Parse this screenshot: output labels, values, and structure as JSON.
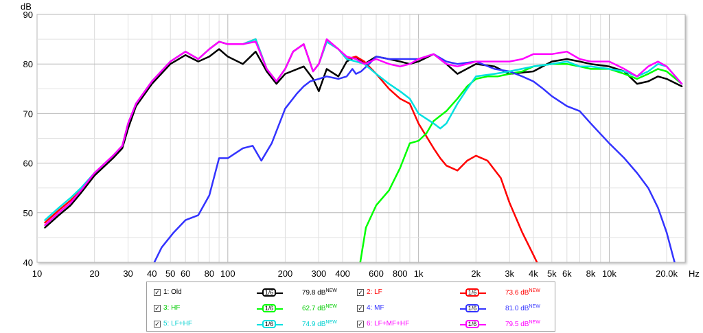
{
  "chart_data": {
    "type": "line",
    "ylabel": "dB",
    "xunit": "Hz",
    "x_scale": "log",
    "xlim": [
      10,
      25000
    ],
    "ylim": [
      40,
      90
    ],
    "grid": true,
    "x_ticks": [
      {
        "v": 10,
        "label": "10"
      },
      {
        "v": 20,
        "label": "20"
      },
      {
        "v": 30,
        "label": "30"
      },
      {
        "v": 40,
        "label": "40"
      },
      {
        "v": 50,
        "label": "50"
      },
      {
        "v": 60,
        "label": "60"
      },
      {
        "v": 80,
        "label": "80"
      },
      {
        "v": 100,
        "label": "100"
      },
      {
        "v": 200,
        "label": "200"
      },
      {
        "v": 300,
        "label": "300"
      },
      {
        "v": 400,
        "label": "400"
      },
      {
        "v": 600,
        "label": "600"
      },
      {
        "v": 800,
        "label": "800"
      },
      {
        "v": 1000,
        "label": "1k"
      },
      {
        "v": 2000,
        "label": "2k"
      },
      {
        "v": 3000,
        "label": "3k"
      },
      {
        "v": 4000,
        "label": "4k"
      },
      {
        "v": 5000,
        "label": "5k"
      },
      {
        "v": 6000,
        "label": "6k"
      },
      {
        "v": 8000,
        "label": "8k"
      },
      {
        "v": 10000,
        "label": "10k"
      },
      {
        "v": 20000,
        "label": "20.0k"
      }
    ],
    "y_ticks": [
      40,
      50,
      60,
      70,
      80,
      90
    ],
    "series": [
      {
        "name": "1: Old",
        "color": "#000000",
        "level": "79.8 dB",
        "points": [
          [
            11,
            47
          ],
          [
            13,
            49.5
          ],
          [
            15,
            51.5
          ],
          [
            17,
            54
          ],
          [
            20,
            57.5
          ],
          [
            25,
            61
          ],
          [
            28,
            63
          ],
          [
            30,
            67
          ],
          [
            33,
            71.5
          ],
          [
            40,
            76
          ],
          [
            50,
            80
          ],
          [
            60,
            81.8
          ],
          [
            70,
            80.5
          ],
          [
            80,
            81.5
          ],
          [
            90,
            83
          ],
          [
            100,
            81.5
          ],
          [
            120,
            80
          ],
          [
            140,
            82.5
          ],
          [
            160,
            78.5
          ],
          [
            180,
            76
          ],
          [
            200,
            78
          ],
          [
            250,
            79.5
          ],
          [
            280,
            77
          ],
          [
            300,
            74.5
          ],
          [
            330,
            79
          ],
          [
            380,
            77.5
          ],
          [
            420,
            80.5
          ],
          [
            470,
            81.5
          ],
          [
            520,
            80
          ],
          [
            600,
            81.5
          ],
          [
            700,
            81
          ],
          [
            800,
            80.5
          ],
          [
            900,
            80
          ],
          [
            1000,
            80.5
          ],
          [
            1200,
            82
          ],
          [
            1400,
            80
          ],
          [
            1600,
            78
          ],
          [
            2000,
            80
          ],
          [
            2500,
            79.5
          ],
          [
            3000,
            78
          ],
          [
            4000,
            78.5
          ],
          [
            5000,
            80.5
          ],
          [
            6000,
            81
          ],
          [
            7000,
            80.5
          ],
          [
            8000,
            80
          ],
          [
            10000,
            79.5
          ],
          [
            12000,
            78.5
          ],
          [
            14000,
            76
          ],
          [
            16000,
            76.5
          ],
          [
            18000,
            77.5
          ],
          [
            20000,
            77
          ],
          [
            24000,
            75.5
          ]
        ]
      },
      {
        "name": "2: LF",
        "color": "#ff0000",
        "level": "73.6 dB",
        "points": [
          [
            11,
            48
          ],
          [
            13,
            50.5
          ],
          [
            15,
            52.5
          ],
          [
            17,
            54.5
          ],
          [
            20,
            58
          ],
          [
            25,
            61.5
          ],
          [
            28,
            63.5
          ],
          [
            30,
            68
          ],
          [
            33,
            72
          ],
          [
            40,
            76.5
          ],
          [
            50,
            80.5
          ],
          [
            60,
            82.5
          ],
          [
            70,
            81
          ],
          [
            80,
            83
          ],
          [
            90,
            84.5
          ],
          [
            100,
            84
          ],
          [
            120,
            84
          ],
          [
            140,
            85
          ],
          [
            160,
            79
          ],
          [
            180,
            76.5
          ],
          [
            200,
            79
          ],
          [
            220,
            82.5
          ],
          [
            250,
            84
          ],
          [
            280,
            78.5
          ],
          [
            300,
            80
          ],
          [
            330,
            84.5
          ],
          [
            380,
            83
          ],
          [
            420,
            81
          ],
          [
            470,
            81.5
          ],
          [
            520,
            80.5
          ],
          [
            600,
            78
          ],
          [
            700,
            75
          ],
          [
            800,
            73
          ],
          [
            900,
            72
          ],
          [
            1000,
            68
          ],
          [
            1200,
            63
          ],
          [
            1300,
            61
          ],
          [
            1400,
            59.5
          ],
          [
            1600,
            58.5
          ],
          [
            1800,
            60.5
          ],
          [
            2000,
            61.5
          ],
          [
            2300,
            60.5
          ],
          [
            2700,
            57
          ],
          [
            3000,
            52
          ],
          [
            3500,
            46
          ],
          [
            4000,
            41.5
          ],
          [
            4300,
            39
          ]
        ]
      },
      {
        "name": "3: HF",
        "color": "#00ff00",
        "level": "62.7 dB",
        "points": [
          [
            490,
            39
          ],
          [
            530,
            47
          ],
          [
            600,
            51.5
          ],
          [
            700,
            54.5
          ],
          [
            800,
            59
          ],
          [
            900,
            64
          ],
          [
            1000,
            64.5
          ],
          [
            1100,
            66
          ],
          [
            1200,
            68.5
          ],
          [
            1400,
            70.5
          ],
          [
            1600,
            73
          ],
          [
            1800,
            75.5
          ],
          [
            2000,
            77
          ],
          [
            2300,
            77.5
          ],
          [
            2600,
            77.5
          ],
          [
            3000,
            78
          ],
          [
            3500,
            78.5
          ],
          [
            4000,
            79.5
          ],
          [
            5000,
            80
          ],
          [
            6000,
            80
          ],
          [
            7000,
            79.5
          ],
          [
            8000,
            79
          ],
          [
            10000,
            79
          ],
          [
            12000,
            78
          ],
          [
            14000,
            77
          ],
          [
            16000,
            78
          ],
          [
            18000,
            79
          ],
          [
            20000,
            78.5
          ],
          [
            24000,
            76
          ]
        ]
      },
      {
        "name": "4: MF",
        "color": "#3333ff",
        "level": "81.0 dB",
        "points": [
          [
            40,
            39
          ],
          [
            45,
            43
          ],
          [
            52,
            46
          ],
          [
            60,
            48.5
          ],
          [
            70,
            49.5
          ],
          [
            80,
            53.5
          ],
          [
            90,
            61
          ],
          [
            100,
            61
          ],
          [
            120,
            63
          ],
          [
            135,
            63.5
          ],
          [
            150,
            60.5
          ],
          [
            170,
            64
          ],
          [
            200,
            71
          ],
          [
            230,
            74
          ],
          [
            250,
            75.5
          ],
          [
            270,
            76.5
          ],
          [
            300,
            77
          ],
          [
            330,
            77.5
          ],
          [
            380,
            77
          ],
          [
            420,
            77.5
          ],
          [
            450,
            79
          ],
          [
            470,
            78
          ],
          [
            500,
            78.5
          ],
          [
            550,
            80
          ],
          [
            600,
            81.5
          ],
          [
            700,
            81
          ],
          [
            800,
            81
          ],
          [
            1000,
            81
          ],
          [
            1200,
            82
          ],
          [
            1400,
            80.5
          ],
          [
            1600,
            80
          ],
          [
            2000,
            80.5
          ],
          [
            2500,
            79
          ],
          [
            3000,
            78.5
          ],
          [
            3500,
            77.5
          ],
          [
            4000,
            76.5
          ],
          [
            4500,
            75
          ],
          [
            5000,
            73.5
          ],
          [
            6000,
            71.5
          ],
          [
            7000,
            70.5
          ],
          [
            8000,
            68
          ],
          [
            10000,
            64
          ],
          [
            12000,
            61
          ],
          [
            14000,
            58
          ],
          [
            16000,
            55
          ],
          [
            18000,
            51
          ],
          [
            20000,
            46
          ],
          [
            22000,
            40
          ]
        ]
      },
      {
        "name": "5: LF+HF",
        "color": "#00e0e0",
        "level": "74.9 dB",
        "points": [
          [
            11,
            48.5
          ],
          [
            13,
            51
          ],
          [
            15,
            53
          ],
          [
            17,
            55
          ],
          [
            20,
            58
          ],
          [
            25,
            61.5
          ],
          [
            28,
            63.5
          ],
          [
            30,
            68
          ],
          [
            33,
            72
          ],
          [
            40,
            76.5
          ],
          [
            50,
            80.5
          ],
          [
            60,
            82.5
          ],
          [
            70,
            81
          ],
          [
            80,
            83
          ],
          [
            90,
            84.5
          ],
          [
            100,
            84
          ],
          [
            120,
            84
          ],
          [
            140,
            85
          ],
          [
            160,
            79
          ],
          [
            180,
            76.5
          ],
          [
            200,
            79
          ],
          [
            220,
            82.5
          ],
          [
            250,
            84
          ],
          [
            280,
            78.5
          ],
          [
            300,
            80
          ],
          [
            330,
            84.5
          ],
          [
            380,
            83
          ],
          [
            420,
            81
          ],
          [
            470,
            80.5
          ],
          [
            520,
            80
          ],
          [
            600,
            78
          ],
          [
            700,
            76
          ],
          [
            800,
            74.5
          ],
          [
            900,
            73
          ],
          [
            1000,
            70
          ],
          [
            1200,
            68
          ],
          [
            1300,
            67
          ],
          [
            1400,
            68
          ],
          [
            1600,
            72
          ],
          [
            1800,
            75
          ],
          [
            2000,
            77.5
          ],
          [
            2500,
            78
          ],
          [
            3000,
            78.5
          ],
          [
            4000,
            79.5
          ],
          [
            5000,
            80
          ],
          [
            6000,
            80.5
          ],
          [
            7000,
            79.5
          ],
          [
            8000,
            79.5
          ],
          [
            10000,
            79
          ],
          [
            12000,
            78.5
          ],
          [
            14000,
            77.5
          ],
          [
            16000,
            78.5
          ],
          [
            18000,
            80
          ],
          [
            20000,
            79.5
          ],
          [
            24000,
            76
          ]
        ]
      },
      {
        "name": "6: LF+MF+HF",
        "color": "#ff00ff",
        "level": "79.5 dB",
        "points": [
          [
            11,
            47.5
          ],
          [
            13,
            50
          ],
          [
            15,
            52
          ],
          [
            17,
            54.5
          ],
          [
            20,
            58
          ],
          [
            25,
            61.5
          ],
          [
            28,
            63.5
          ],
          [
            30,
            68
          ],
          [
            33,
            72
          ],
          [
            40,
            76.5
          ],
          [
            50,
            80.5
          ],
          [
            60,
            82.5
          ],
          [
            70,
            81
          ],
          [
            80,
            83
          ],
          [
            90,
            84.5
          ],
          [
            100,
            84
          ],
          [
            120,
            84
          ],
          [
            140,
            84.5
          ],
          [
            160,
            79
          ],
          [
            180,
            76.5
          ],
          [
            200,
            79
          ],
          [
            220,
            82.5
          ],
          [
            250,
            84
          ],
          [
            280,
            78.5
          ],
          [
            300,
            80
          ],
          [
            330,
            85
          ],
          [
            380,
            83
          ],
          [
            420,
            81.5
          ],
          [
            470,
            81
          ],
          [
            520,
            80
          ],
          [
            600,
            81
          ],
          [
            700,
            80
          ],
          [
            800,
            79.5
          ],
          [
            900,
            80
          ],
          [
            1000,
            81
          ],
          [
            1200,
            82
          ],
          [
            1400,
            80
          ],
          [
            1600,
            79.5
          ],
          [
            2000,
            80.5
          ],
          [
            2500,
            80.5
          ],
          [
            3000,
            80.5
          ],
          [
            3500,
            81
          ],
          [
            4000,
            82
          ],
          [
            5000,
            82
          ],
          [
            6000,
            82.5
          ],
          [
            7000,
            81
          ],
          [
            8000,
            80.5
          ],
          [
            10000,
            80.5
          ],
          [
            12000,
            79
          ],
          [
            14000,
            77.5
          ],
          [
            16000,
            79.5
          ],
          [
            18000,
            80.5
          ],
          [
            20000,
            79.5
          ],
          [
            24000,
            76
          ]
        ]
      }
    ]
  },
  "legend": {
    "smoothing_label": "1/6",
    "new_badge": "NEW",
    "items": [
      {
        "name": "1: Old",
        "name_color": "#000000",
        "value": "79.8 dB",
        "value_color": "#000000"
      },
      {
        "name": "2: LF",
        "name_color": "#ff0000",
        "value": "73.6 dB",
        "value_color": "#ff0000"
      },
      {
        "name": "3: HF",
        "name_color": "#00cc00",
        "value": "62.7 dB",
        "value_color": "#00cc00"
      },
      {
        "name": "4: MF",
        "name_color": "#3333ff",
        "value": "81.0 dB",
        "value_color": "#3333ff"
      },
      {
        "name": "5: LF+HF",
        "name_color": "#00d0d0",
        "value": "74.9 dB",
        "value_color": "#00d0d0"
      },
      {
        "name": "6: LF+MF+HF",
        "name_color": "#ff00ff",
        "value": "79.5 dB",
        "value_color": "#ff00ff"
      }
    ]
  }
}
